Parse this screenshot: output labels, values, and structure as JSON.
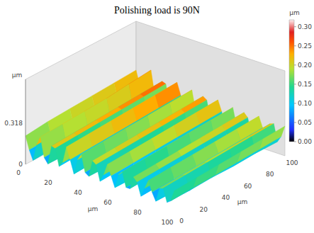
{
  "chart_data": {
    "type": "surface3d",
    "title": "Polishing load is 90N",
    "x": [
      0,
      2.5,
      5,
      7.5,
      10,
      12.5,
      15,
      17.5,
      20,
      22.5,
      25,
      27.5,
      30,
      32.5,
      35,
      37.5,
      40,
      42.5,
      45,
      47.5,
      50,
      52.5,
      55,
      57.5,
      60,
      62.5,
      65,
      67.5,
      70,
      72.5,
      75,
      77.5,
      80,
      82.5,
      85,
      87.5,
      90,
      92.5,
      95,
      97.5,
      100
    ],
    "y": [
      0,
      20,
      40,
      60,
      80,
      100
    ],
    "z": [
      [
        0.22,
        0.12,
        0.05,
        0.18,
        0.25,
        0.1,
        0.06,
        0.21,
        0.2,
        0.07,
        0.11,
        0.24,
        0.15,
        0.05,
        0.17,
        0.22,
        0.09,
        0.07,
        0.2,
        0.18,
        0.06,
        0.12,
        0.21,
        0.13,
        0.05,
        0.16,
        0.19,
        0.08,
        0.08,
        0.18,
        0.15,
        0.05,
        0.12,
        0.19,
        0.11,
        0.05,
        0.16,
        0.17,
        0.07,
        0.09,
        0.18
      ],
      [
        0.24,
        0.13,
        0.06,
        0.19,
        0.26,
        0.11,
        0.06,
        0.22,
        0.21,
        0.08,
        0.12,
        0.25,
        0.16,
        0.06,
        0.18,
        0.23,
        0.1,
        0.07,
        0.21,
        0.19,
        0.07,
        0.13,
        0.22,
        0.14,
        0.05,
        0.17,
        0.2,
        0.08,
        0.09,
        0.19,
        0.16,
        0.06,
        0.13,
        0.2,
        0.12,
        0.05,
        0.17,
        0.18,
        0.07,
        0.1,
        0.19
      ],
      [
        0.25,
        0.14,
        0.06,
        0.2,
        0.27,
        0.12,
        0.07,
        0.23,
        0.22,
        0.08,
        0.13,
        0.26,
        0.17,
        0.06,
        0.19,
        0.24,
        0.1,
        0.08,
        0.22,
        0.2,
        0.07,
        0.14,
        0.23,
        0.15,
        0.06,
        0.18,
        0.21,
        0.09,
        0.09,
        0.2,
        0.17,
        0.06,
        0.14,
        0.21,
        0.13,
        0.06,
        0.18,
        0.19,
        0.08,
        0.11,
        0.2
      ],
      [
        0.26,
        0.15,
        0.07,
        0.21,
        0.28,
        0.12,
        0.07,
        0.24,
        0.23,
        0.09,
        0.14,
        0.27,
        0.18,
        0.07,
        0.2,
        0.25,
        0.11,
        0.08,
        0.23,
        0.21,
        0.08,
        0.15,
        0.24,
        0.16,
        0.06,
        0.19,
        0.22,
        0.1,
        0.1,
        0.21,
        0.18,
        0.07,
        0.15,
        0.22,
        0.14,
        0.06,
        0.19,
        0.2,
        0.08,
        0.12,
        0.21
      ],
      [
        0.27,
        0.16,
        0.07,
        0.22,
        0.3,
        0.13,
        0.08,
        0.25,
        0.24,
        0.09,
        0.15,
        0.28,
        0.19,
        0.07,
        0.21,
        0.26,
        0.12,
        0.09,
        0.24,
        0.22,
        0.08,
        0.16,
        0.25,
        0.17,
        0.07,
        0.2,
        0.23,
        0.1,
        0.11,
        0.22,
        0.19,
        0.07,
        0.16,
        0.23,
        0.15,
        0.07,
        0.2,
        0.21,
        0.09,
        0.13,
        0.22
      ],
      [
        0.28,
        0.17,
        0.08,
        0.23,
        0.318,
        0.14,
        0.08,
        0.26,
        0.25,
        0.1,
        0.16,
        0.29,
        0.2,
        0.08,
        0.22,
        0.27,
        0.12,
        0.09,
        0.25,
        0.23,
        0.09,
        0.17,
        0.26,
        0.18,
        0.07,
        0.21,
        0.24,
        0.11,
        0.12,
        0.23,
        0.2,
        0.08,
        0.17,
        0.24,
        0.16,
        0.07,
        0.21,
        0.22,
        0.09,
        0.14,
        0.23
      ]
    ],
    "xlim": [
      0,
      100
    ],
    "xticks": [
      0,
      20,
      40,
      60,
      80,
      100
    ],
    "xlabel": "µm",
    "ylim": [
      0,
      100
    ],
    "yticks": [
      0,
      20,
      40,
      60,
      80,
      100
    ],
    "ylabel": "µm",
    "zlim": [
      0,
      0.318
    ],
    "zticks": [
      0,
      0.318
    ],
    "zlabel": "µm",
    "colorbar": {
      "range": [
        0,
        0.318
      ],
      "ticks": [
        {
          "value": 0,
          "label": "0.00"
        },
        {
          "value": 0.05,
          "label": "0.05"
        },
        {
          "value": 0.1,
          "label": "0.10"
        },
        {
          "value": 0.15,
          "label": "0.15"
        },
        {
          "value": 0.2,
          "label": "0.20"
        },
        {
          "value": 0.25,
          "label": "0.25"
        },
        {
          "value": 0.3,
          "label": "0.30"
        }
      ],
      "label": "µm"
    }
  }
}
